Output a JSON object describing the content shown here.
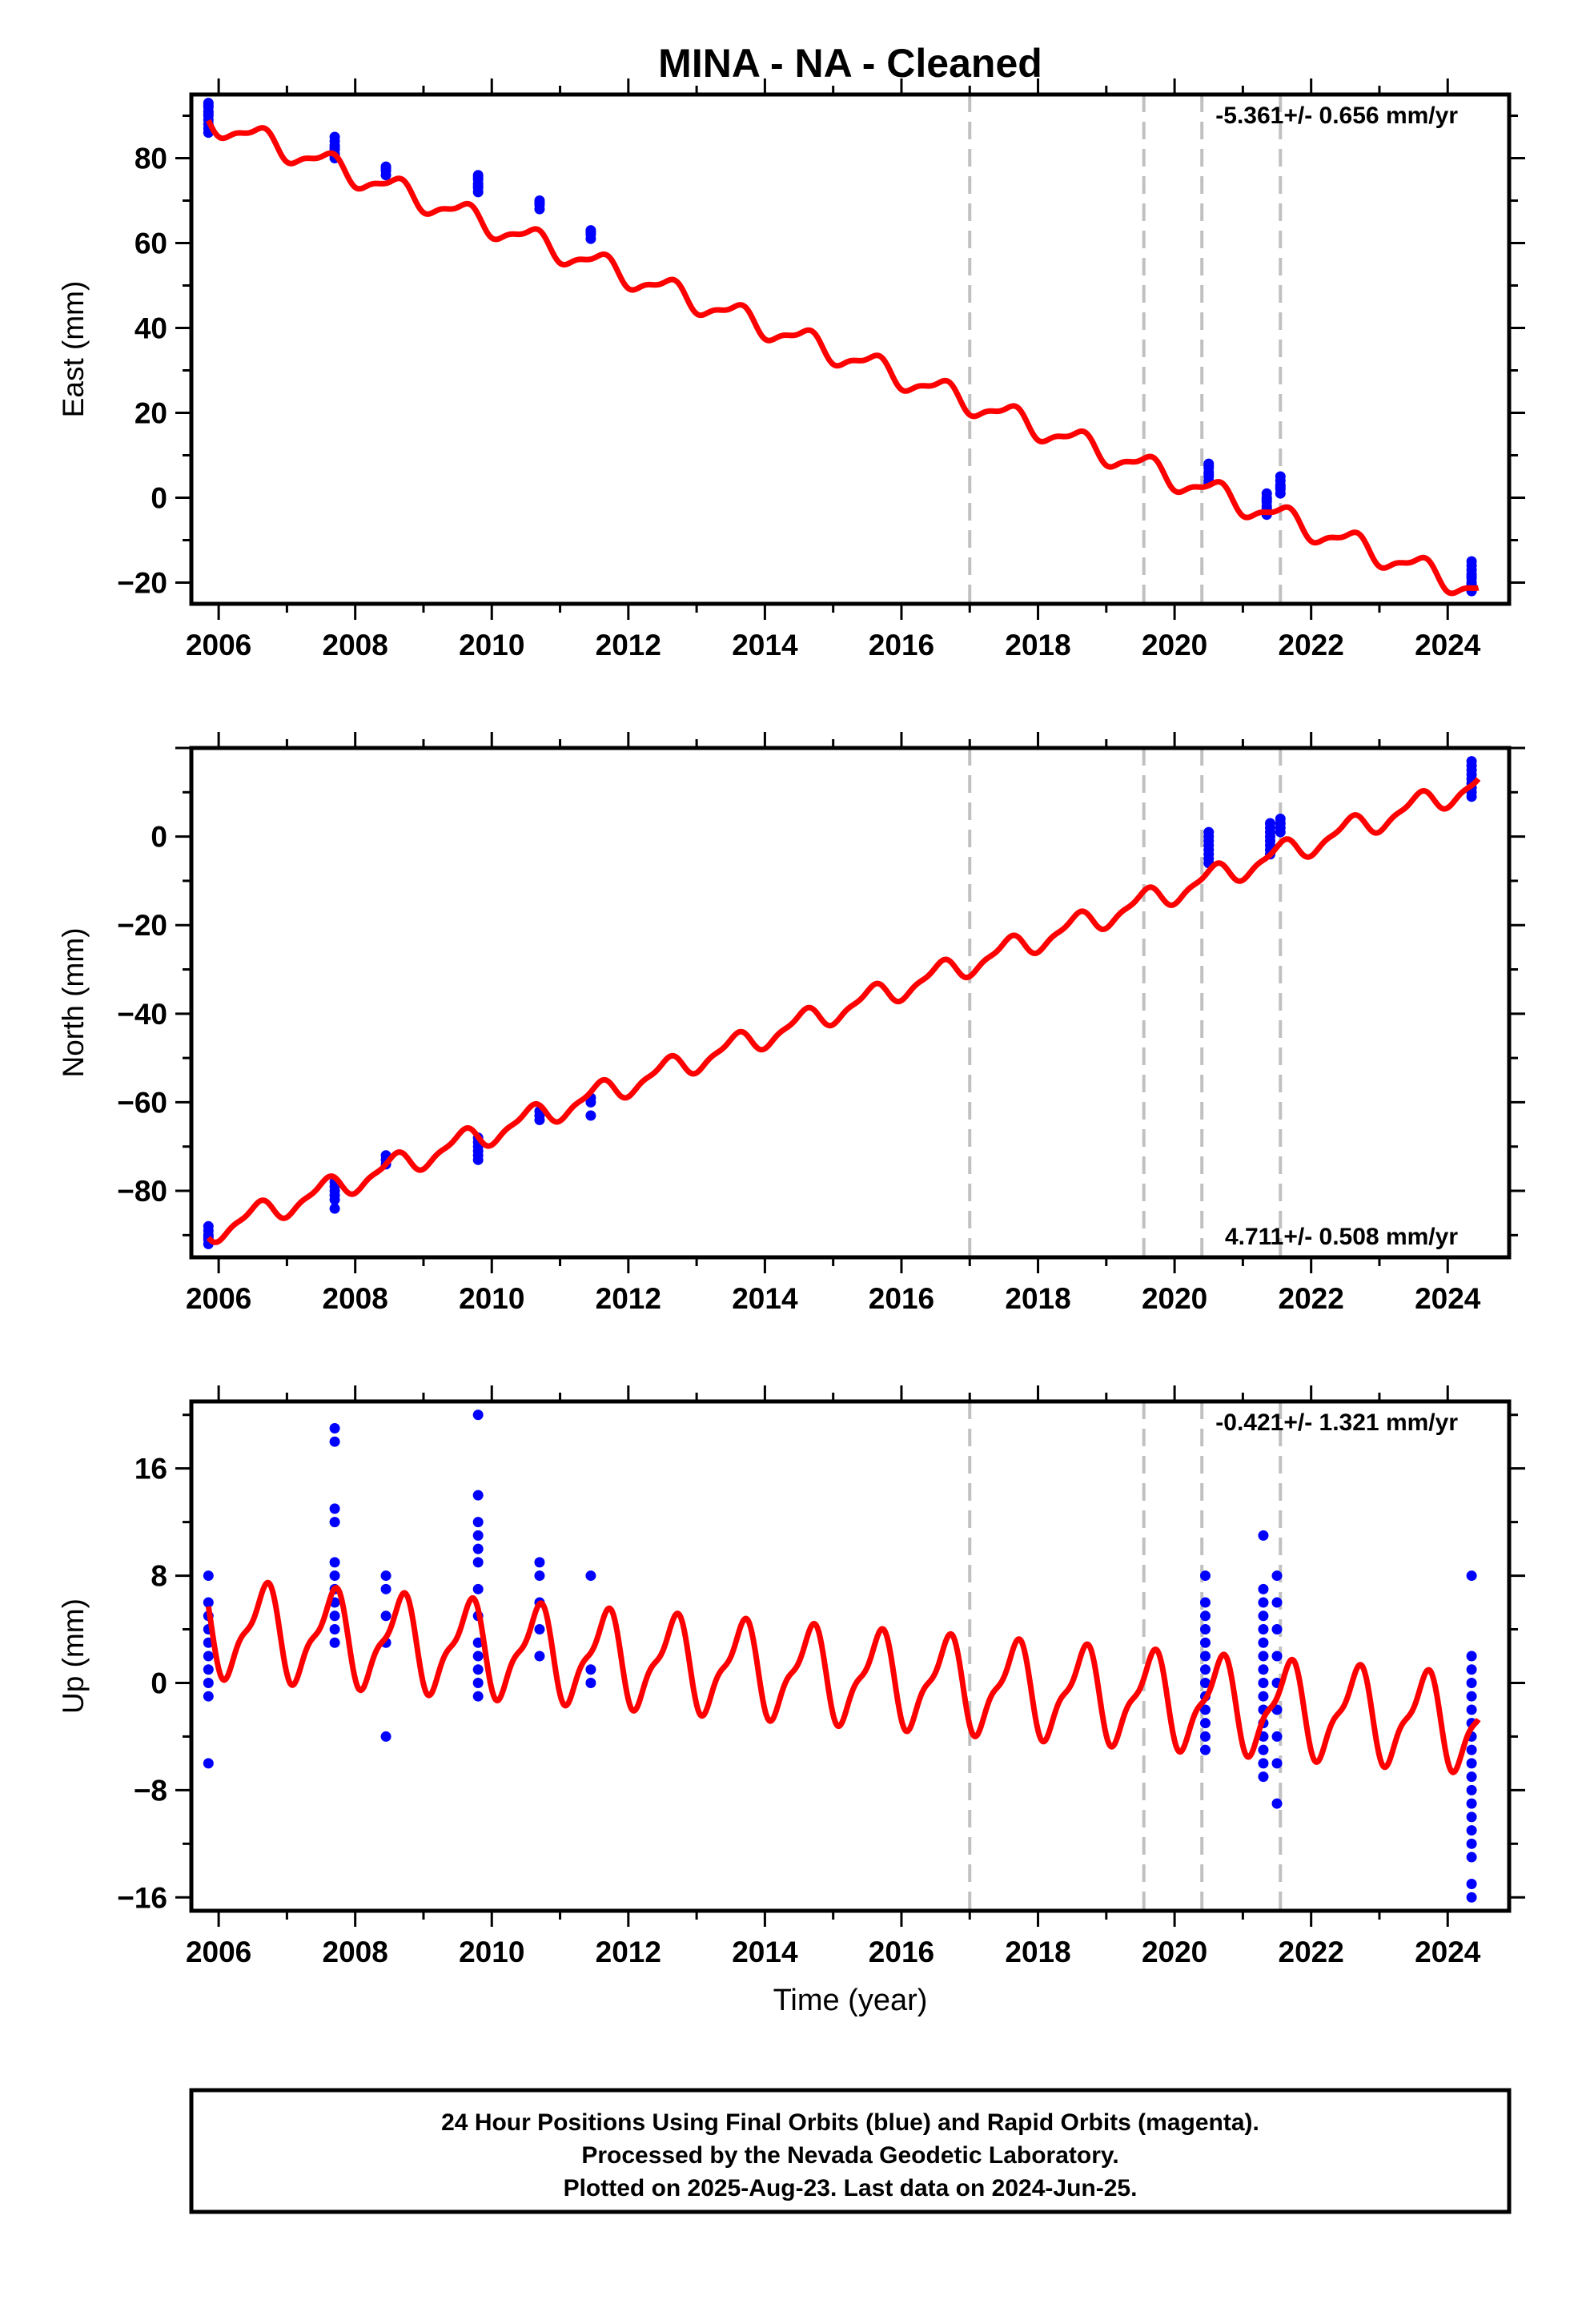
{
  "title": "MINA  - NA - Cleaned",
  "xlabel": "Time (year)",
  "footer": {
    "line1": "24 Hour Positions Using Final Orbits (blue) and Rapid Orbits (magenta).",
    "line2": "Processed by the Nevada Geodetic Laboratory.",
    "line3": "Plotted on 2025-Aug-23. Last data on 2024-Jun-25."
  },
  "colors": {
    "observations": "#0000ff",
    "model": "#ff0000",
    "steps": "#c0c0c0",
    "frame": "#000000"
  },
  "chart_data": [
    {
      "type": "scatter",
      "name": "east",
      "ylabel": "East (mm)",
      "rate_label": "-5.361+/- 0.656 mm/yr",
      "rate_position": "top-right",
      "xlim": [
        2005.6,
        2024.9
      ],
      "ylim": [
        -25,
        95
      ],
      "xticks": [
        2006,
        2008,
        2010,
        2012,
        2014,
        2016,
        2018,
        2020,
        2022,
        2024
      ],
      "yticks": [
        -20,
        0,
        20,
        40,
        60,
        80
      ],
      "steps_x": [
        2017.0,
        2019.55,
        2020.4,
        2021.55
      ],
      "model": {
        "linear": [
          2006.0,
          88.0,
          2024.3,
          -21.0
        ],
        "seasonal_amplitude": 2.6,
        "seasonal_phase_year": 2006.6,
        "offsets": [
          [
            2017.0,
            1.5
          ],
          [
            2019.55,
            1.0
          ]
        ]
      },
      "observations": [
        {
          "x": 2005.85,
          "y": [
            87,
            88,
            89,
            90,
            91,
            92,
            93,
            86,
            90.5,
            92.5
          ]
        },
        {
          "x": 2007.7,
          "y": [
            80,
            81,
            82,
            83,
            84,
            85,
            82.5,
            80.5
          ]
        },
        {
          "x": 2008.45,
          "y": [
            76,
            77,
            78,
            77.5
          ]
        },
        {
          "x": 2009.8,
          "y": [
            72,
            73,
            74,
            75,
            76,
            73.5,
            75.5
          ]
        },
        {
          "x": 2010.7,
          "y": [
            68,
            69,
            70,
            69.5
          ]
        },
        {
          "x": 2011.45,
          "y": [
            61,
            62,
            63,
            62.5
          ]
        },
        {
          "x": 2020.5,
          "y": [
            4,
            5,
            6,
            7,
            8,
            5.5,
            7.5,
            3.5
          ]
        },
        {
          "x": 2021.35,
          "y": [
            -4,
            -3,
            -2,
            -1,
            0,
            1,
            -2.5,
            -0.5
          ]
        },
        {
          "x": 2021.55,
          "y": [
            1,
            2,
            3,
            4,
            5,
            2.5
          ]
        },
        {
          "x": 2024.35,
          "y": [
            -22,
            -21,
            -20,
            -19,
            -18,
            -17,
            -16,
            -15,
            -20.5,
            -18.5
          ]
        }
      ]
    },
    {
      "type": "scatter",
      "name": "north",
      "ylabel": "North (mm)",
      "rate_label": "4.711+/- 0.508 mm/yr",
      "rate_position": "bottom-right",
      "xlim": [
        2005.6,
        2024.9
      ],
      "ylim": [
        -95,
        20
      ],
      "xticks": [
        2006,
        2008,
        2010,
        2012,
        2014,
        2016,
        2018,
        2020,
        2022,
        2024
      ],
      "yticks": [
        -80,
        -60,
        -40,
        -20,
        0
      ],
      "steps_x": [
        2017.0,
        2019.55,
        2020.4,
        2021.55
      ],
      "model": {
        "linear": [
          2006.0,
          -88.5,
          2024.3,
          11.0
        ],
        "seasonal_amplitude": 2.5,
        "seasonal_phase_year": 2006.55,
        "offsets": [
          [
            2017.0,
            5.0
          ],
          [
            2019.55,
            5.0
          ],
          [
            2020.4,
            5.0
          ]
        ]
      },
      "observations": [
        {
          "x": 2005.85,
          "y": [
            -92,
            -91,
            -90,
            -89,
            -88,
            -90.5
          ]
        },
        {
          "x": 2007.7,
          "y": [
            -84,
            -82,
            -80,
            -79,
            -78,
            -81
          ]
        },
        {
          "x": 2008.45,
          "y": [
            -74,
            -73,
            -72
          ]
        },
        {
          "x": 2009.8,
          "y": [
            -73,
            -72,
            -71,
            -70,
            -69,
            -68
          ]
        },
        {
          "x": 2010.7,
          "y": [
            -64,
            -63,
            -62
          ]
        },
        {
          "x": 2011.45,
          "y": [
            -63,
            -60,
            -59
          ]
        },
        {
          "x": 2020.5,
          "y": [
            -6,
            -5,
            -4,
            -3,
            -2,
            -1,
            0,
            1
          ]
        },
        {
          "x": 2021.4,
          "y": [
            -4,
            -3,
            -2,
            -1,
            0,
            1,
            2,
            3
          ]
        },
        {
          "x": 2021.55,
          "y": [
            1,
            2,
            3,
            4
          ]
        },
        {
          "x": 2024.35,
          "y": [
            9,
            10,
            11,
            12,
            13,
            14,
            15,
            16,
            17
          ]
        }
      ]
    },
    {
      "type": "scatter",
      "name": "up",
      "ylabel": "Up (mm)",
      "rate_label": "-0.421+/- 1.321 mm/yr",
      "rate_position": "top-right",
      "xlim": [
        2005.6,
        2024.9
      ],
      "ylim": [
        -17,
        21
      ],
      "xticks": [
        2006,
        2008,
        2010,
        2012,
        2014,
        2016,
        2018,
        2020,
        2022,
        2024
      ],
      "yticks": [
        -16,
        -8,
        0,
        8,
        16
      ],
      "steps_x": [
        2017.0,
        2019.55,
        2020.4,
        2021.55
      ],
      "model": {
        "linear": [
          2006.0,
          4.0,
          2024.3,
          -3.0
        ],
        "seasonal_amplitude": 3.2,
        "seasonal_phase_year": 2006.65,
        "offsets": []
      },
      "observations": [
        {
          "x": 2005.85,
          "y": [
            -6,
            -1,
            0,
            1,
            2,
            3,
            4,
            5,
            6,
            8
          ]
        },
        {
          "x": 2007.7,
          "y": [
            3,
            4,
            5,
            6,
            7,
            8,
            9,
            12,
            13,
            18,
            19
          ]
        },
        {
          "x": 2008.45,
          "y": [
            -4,
            3,
            5,
            7,
            8
          ]
        },
        {
          "x": 2009.8,
          "y": [
            -1,
            0,
            1,
            2,
            3,
            5,
            7,
            9,
            10,
            11,
            12,
            14,
            20
          ]
        },
        {
          "x": 2010.7,
          "y": [
            2,
            4,
            6,
            8,
            9
          ]
        },
        {
          "x": 2011.45,
          "y": [
            0,
            1,
            8
          ]
        },
        {
          "x": 2020.45,
          "y": [
            -5,
            -4,
            -3,
            -2,
            -1,
            0,
            1,
            2,
            3,
            4,
            5,
            6,
            8
          ]
        },
        {
          "x": 2021.3,
          "y": [
            -7,
            -6,
            -5,
            -4,
            -3,
            -2,
            -1,
            0,
            1,
            2,
            3,
            4,
            5,
            6,
            7,
            11
          ]
        },
        {
          "x": 2021.5,
          "y": [
            -9,
            -6,
            -4,
            -2,
            0,
            2,
            4,
            6,
            8
          ]
        },
        {
          "x": 2024.35,
          "y": [
            -16,
            -15,
            -13,
            -12,
            -11,
            -10,
            -9,
            -8,
            -7,
            -6,
            -5,
            -4,
            -3,
            -2,
            -1,
            0,
            1,
            2,
            8
          ]
        }
      ]
    }
  ]
}
